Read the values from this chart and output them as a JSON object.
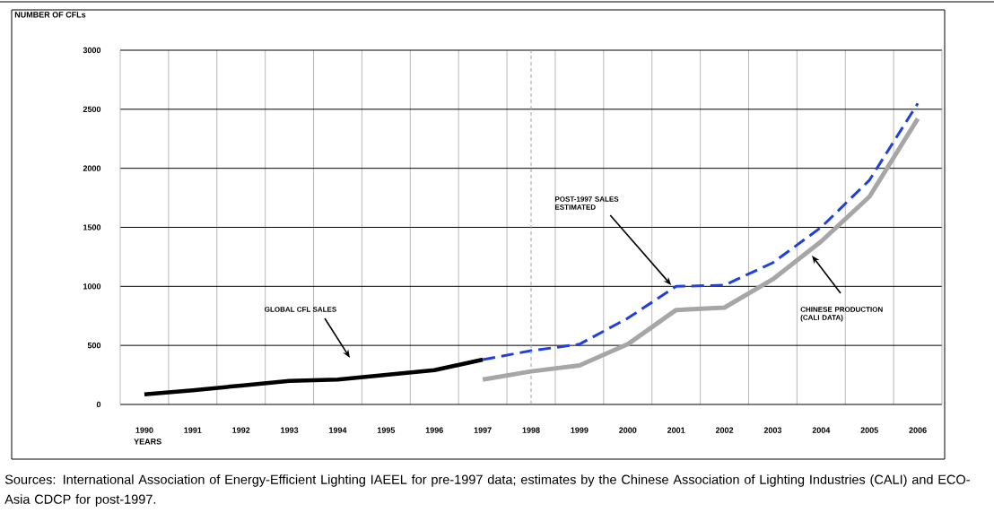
{
  "chart_data": {
    "type": "line",
    "ylabel": "NUMBER OF CFLs",
    "xlabel": "YEARS",
    "xlim": [
      1989.5,
      2006.5
    ],
    "xticks": [
      1990,
      1991,
      1992,
      1993,
      1994,
      1995,
      1996,
      1997,
      1998,
      1999,
      2000,
      2001,
      2002,
      2003,
      2004,
      2005,
      2006
    ],
    "ylim": [
      0,
      3000
    ],
    "yticks": [
      0,
      500,
      1000,
      1500,
      2000,
      2500,
      3000
    ],
    "grid": true,
    "series": [
      {
        "color": "#000000",
        "line_style": "solid",
        "x": [
          1990,
          1991,
          1992,
          1993,
          1994,
          1995,
          1996,
          1997
        ],
        "values": [
          85,
          120,
          160,
          200,
          210,
          250,
          290,
          380
        ]
      },
      {
        "color": "#1f3fdf",
        "line_style": "dashed",
        "x": [
          1997,
          1998,
          1999,
          2000,
          2001,
          2002,
          2003,
          2004,
          2005,
          2006
        ],
        "values": [
          380,
          455,
          510,
          730,
          1000,
          1010,
          1200,
          1500,
          1900,
          2550
        ]
      },
      {
        "color": "#a6a6a6",
        "line_style": "solid",
        "x": [
          1997,
          1998,
          1999,
          2000,
          2001,
          2002,
          2003,
          2004,
          2005,
          2006
        ],
        "values": [
          210,
          280,
          330,
          510,
          800,
          820,
          1060,
          1380,
          1760,
          2420
        ]
      }
    ],
    "ref_lines": [
      {
        "axis": "x",
        "value": 1998,
        "color": "#a0a0a0",
        "line_style": "dashed"
      }
    ],
    "annotations": [
      "GLOBAL CFL SALES",
      {
        "text": "POST-1997 SALES ESTIMATED",
        "x": 2000.9,
        "y": 1010
      },
      "CHINESE PRODUCTION (CALI DATA)",
      "Sources: International Association of Energy-Efficient Lighting IAEEL for pre-1997 data; estimates by the Chinese Association of Lighting Industries (CALI) and ECO-Asia CDCP for post-1997."
    ]
  }
}
